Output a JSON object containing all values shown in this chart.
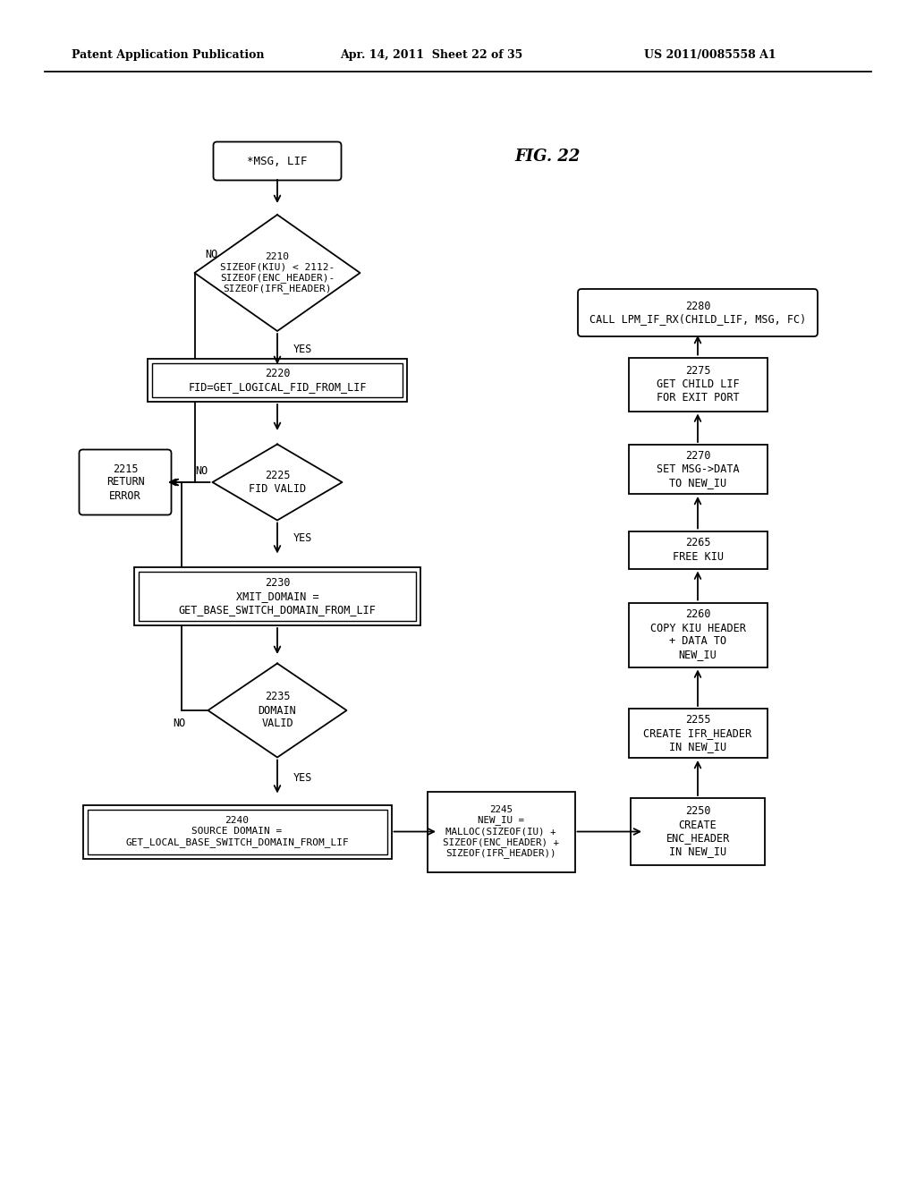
{
  "title_header": "Patent Application Publication",
  "date_header": "Apr. 14, 2011  Sheet 22 of 35",
  "patent_header": "US 2011/0085558 A1",
  "fig_label": "FIG. 22",
  "background": "#ffffff"
}
